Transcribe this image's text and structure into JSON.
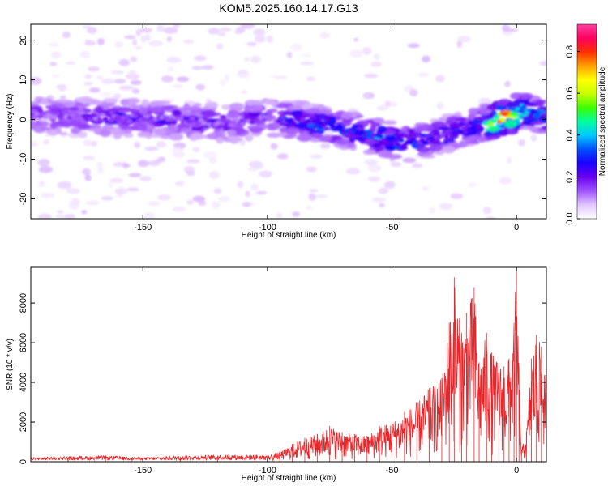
{
  "title": "KOM5.2025.160.14.17.G13",
  "chart_data": [
    {
      "type": "heatmap",
      "xlabel": "Height of straight line (km)",
      "ylabel": "Frequency (Hz)",
      "xlim": [
        -195,
        12
      ],
      "ylim": [
        -25,
        24
      ],
      "x_ticks": [
        -150,
        -100,
        -50,
        0
      ],
      "y_ticks": [
        -20,
        -10,
        0,
        10,
        20
      ],
      "colorbar": {
        "label": "Normalized spectral amplitude",
        "range": [
          0,
          0.93
        ],
        "ticks": [
          0,
          0.2,
          0.4,
          0.6,
          0.8
        ],
        "colors": [
          "#ffffff",
          "#e2c6ff",
          "#a155ff",
          "#6a00f0",
          "#1c00ff",
          "#0050ff",
          "#00c8ff",
          "#00ffa0",
          "#3cff00",
          "#c8ff00",
          "#ffff00",
          "#ffa000",
          "#ff3000",
          "#ff0060",
          "#ff40a0"
        ]
      },
      "ridge": [
        {
          "x": -195,
          "y": 1.0,
          "amp": 0.15
        },
        {
          "x": -165,
          "y": 0.5,
          "amp": 0.2
        },
        {
          "x": -140,
          "y": 0.0,
          "amp": 0.2
        },
        {
          "x": -115,
          "y": -1.0,
          "amp": 0.18
        },
        {
          "x": -100,
          "y": 0.5,
          "amp": 0.2
        },
        {
          "x": -85,
          "y": -0.5,
          "amp": 0.3
        },
        {
          "x": -70,
          "y": -2.5,
          "amp": 0.3
        },
        {
          "x": -55,
          "y": -4.5,
          "amp": 0.35
        },
        {
          "x": -45,
          "y": -6.0,
          "amp": 0.3
        },
        {
          "x": -35,
          "y": -5.0,
          "amp": 0.3
        },
        {
          "x": -25,
          "y": -3.0,
          "amp": 0.25
        },
        {
          "x": -15,
          "y": -1.5,
          "amp": 0.3
        },
        {
          "x": -5,
          "y": 0.5,
          "amp": 0.9
        },
        {
          "x": 3,
          "y": 2.5,
          "amp": 0.45
        },
        {
          "x": 12,
          "y": 0.0,
          "amp": 0.3
        }
      ]
    },
    {
      "type": "line",
      "xlabel": "Height of straight line (km)",
      "ylabel": "SNR (10 * v/v)",
      "xlim": [
        -195,
        12
      ],
      "ylim": [
        0,
        9800
      ],
      "x_ticks": [
        -150,
        -100,
        -50,
        0
      ],
      "y_ticks": [
        0,
        2000,
        4000,
        6000,
        8000
      ],
      "color": "#e8262a",
      "series": [
        {
          "x": [
            -195,
            -180,
            -165,
            -150,
            -135,
            -120,
            -105,
            -100,
            -95,
            -90,
            -85,
            -80,
            -75,
            -70,
            -65,
            -60,
            -55,
            -50,
            -45,
            -40,
            -35,
            -30,
            -27,
            -25,
            -22,
            -20,
            -17,
            -15,
            -12,
            -10,
            -7,
            -5,
            -3,
            -1,
            0,
            1,
            2,
            4,
            6,
            8,
            10,
            12
          ],
          "y": [
            150,
            200,
            250,
            150,
            250,
            300,
            300,
            300,
            500,
            900,
            1200,
            1400,
            1800,
            1500,
            1400,
            1300,
            1800,
            2000,
            2500,
            3000,
            3700,
            4200,
            7000,
            9300,
            6500,
            7500,
            8800,
            5000,
            6500,
            5500,
            5000,
            4800,
            5200,
            7000,
            9800,
            4800,
            600,
            1500,
            5200,
            6400,
            5800,
            4200
          ]
        }
      ]
    }
  ]
}
